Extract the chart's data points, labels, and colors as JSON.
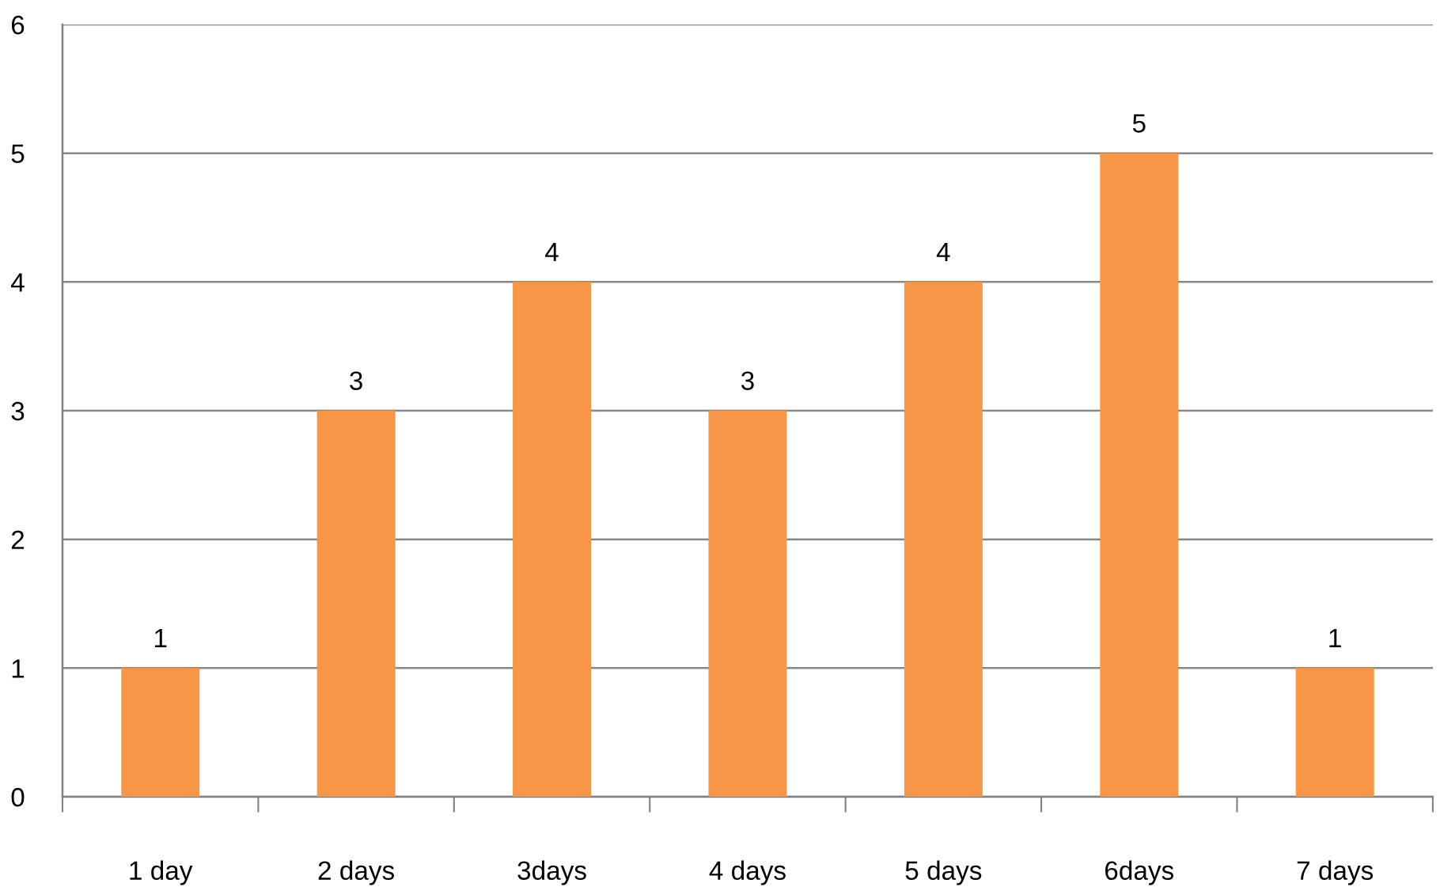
{
  "chart_data": {
    "type": "bar",
    "categories": [
      "1 day",
      "2 days",
      "3days",
      "4 days",
      "5 days",
      "6days",
      "7 days"
    ],
    "values": [
      1,
      3,
      4,
      3,
      4,
      5,
      1
    ],
    "color": "#f79646",
    "ylim": [
      0,
      6
    ],
    "yticks": [
      0,
      1,
      2,
      3,
      4,
      5,
      6
    ],
    "grid": "y",
    "data_labels": true
  }
}
